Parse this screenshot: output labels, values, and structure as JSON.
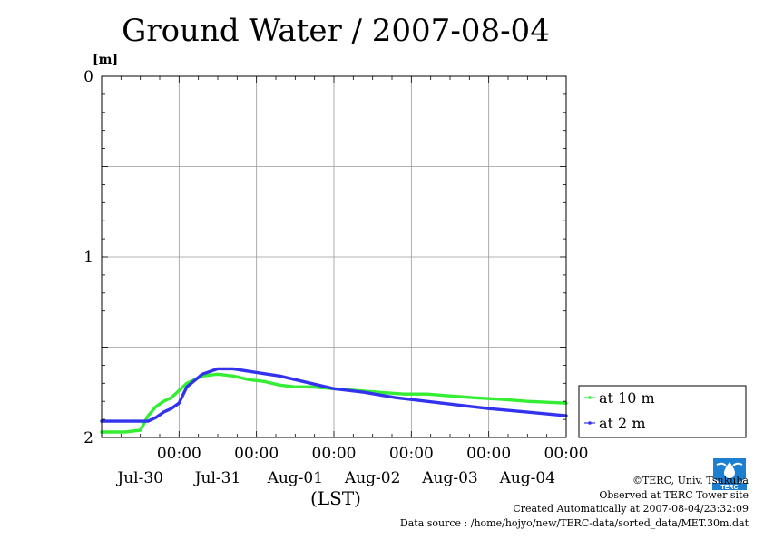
{
  "title": "Ground Water / 2007-08-04",
  "y_unit": "[m]",
  "x_unit": "(LST)",
  "footer": {
    "copyright": "©TERC, Univ. Tsukuba",
    "site": "Observed at TERC Tower site",
    "created": "Created Automatically at 2007-08-04/23:32:09",
    "source": "Data source : /home/hojyo/new/TERC-data/sorted_data/MET.30m.dat"
  },
  "logo_text": "TERC",
  "chart_data": {
    "type": "line",
    "title": "Ground Water / 2007-08-04",
    "ylabel": "[m]",
    "xlabel": "(LST)",
    "ylim": [
      0,
      2
    ],
    "y_inverted": true,
    "yticks": [
      "0",
      "1",
      "2"
    ],
    "xlim": [
      0,
      6
    ],
    "x_unit_note": "days from Jul-30 00:00",
    "xticks": [
      {
        "time": "00:00",
        "date": "Jul-30"
      },
      {
        "time": "00:00",
        "date": "Jul-31"
      },
      {
        "time": "00:00",
        "date": "Aug-01"
      },
      {
        "time": "00:00",
        "date": "Aug-02"
      },
      {
        "time": "00:00",
        "date": "Aug-03"
      },
      {
        "time": "00:00",
        "date": "Aug-04"
      }
    ],
    "grid": true,
    "legend_position": "right-bottom",
    "series": [
      {
        "name": "at 10 m",
        "color": "#33ee33",
        "x": [
          0,
          0.3,
          0.5,
          0.6,
          0.7,
          0.8,
          0.9,
          1.1,
          1.3,
          1.5,
          1.7,
          1.9,
          2.1,
          2.3,
          2.5,
          2.7,
          3.0,
          3.3,
          3.6,
          3.9,
          4.2,
          4.5,
          4.8,
          5.2,
          5.5,
          6.0
        ],
        "y": [
          1.97,
          1.97,
          1.96,
          1.88,
          1.83,
          1.8,
          1.78,
          1.7,
          1.66,
          1.65,
          1.66,
          1.68,
          1.69,
          1.71,
          1.72,
          1.72,
          1.73,
          1.74,
          1.75,
          1.76,
          1.76,
          1.77,
          1.78,
          1.79,
          1.8,
          1.81
        ]
      },
      {
        "name": "at 2 m",
        "color": "#3333ee",
        "x": [
          0,
          0.3,
          0.5,
          0.6,
          0.7,
          0.8,
          0.9,
          1.0,
          1.1,
          1.3,
          1.5,
          1.7,
          2.0,
          2.3,
          2.6,
          3.0,
          3.4,
          3.8,
          4.2,
          4.6,
          5.0,
          5.5,
          6.0
        ],
        "y": [
          1.91,
          1.91,
          1.91,
          1.91,
          1.89,
          1.86,
          1.84,
          1.81,
          1.72,
          1.65,
          1.62,
          1.62,
          1.64,
          1.66,
          1.69,
          1.73,
          1.75,
          1.78,
          1.8,
          1.82,
          1.84,
          1.86,
          1.88
        ]
      }
    ]
  }
}
